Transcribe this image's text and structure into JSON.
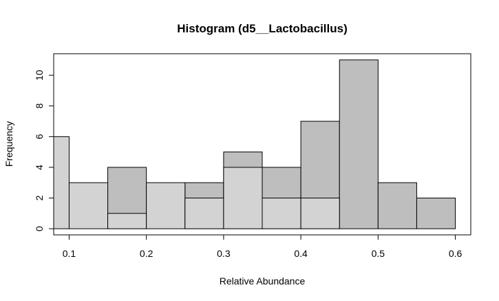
{
  "chart_data": {
    "type": "bar",
    "title": "Histogram (d5__Lactobacillus)",
    "xlabel": "Relative Abundance",
    "ylabel": "Frequency",
    "xlim": [
      0.08,
      0.62
    ],
    "ylim": [
      -0.4,
      11.4
    ],
    "xticks": [
      0.1,
      0.2,
      0.3,
      0.4,
      0.5,
      0.6
    ],
    "xtick_labels": [
      "0.1",
      "0.2",
      "0.3",
      "0.4",
      "0.5",
      "0.6"
    ],
    "yticks": [
      0,
      2,
      4,
      6,
      8,
      10
    ],
    "ytick_labels": [
      "0",
      "2",
      "4",
      "6",
      "8",
      "10"
    ],
    "grid": false,
    "series": [
      {
        "color": "#bebebe",
        "bins": [
          [
            0.15,
            0.2
          ],
          [
            0.25,
            0.3
          ],
          [
            0.3,
            0.35
          ],
          [
            0.35,
            0.4
          ],
          [
            0.4,
            0.45
          ],
          [
            0.45,
            0.5
          ],
          [
            0.5,
            0.55
          ],
          [
            0.55,
            0.6
          ]
        ],
        "values": [
          4,
          3,
          5,
          4,
          7,
          11,
          3,
          2
        ]
      },
      {
        "color": "#d3d3d3",
        "bins": [
          [
            0.05,
            0.1
          ],
          [
            0.1,
            0.15
          ],
          [
            0.15,
            0.2
          ],
          [
            0.2,
            0.25
          ],
          [
            0.25,
            0.3
          ],
          [
            0.3,
            0.35
          ],
          [
            0.35,
            0.4
          ],
          [
            0.4,
            0.45
          ]
        ],
        "values": [
          6,
          3,
          1,
          3,
          2,
          4,
          2,
          2
        ]
      }
    ]
  }
}
